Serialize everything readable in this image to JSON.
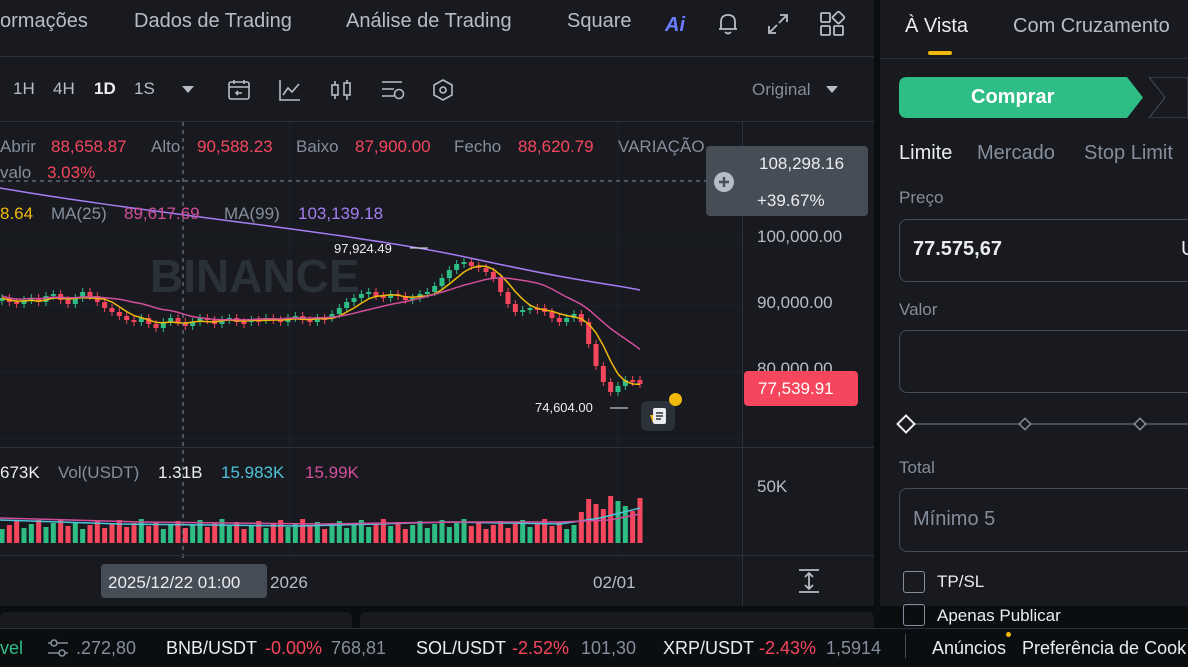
{
  "topnav": {
    "items": [
      "ormações",
      "Dados de Trading",
      "Análise de Trading",
      "Square"
    ],
    "ai_label": "Ai"
  },
  "toolbar": {
    "intervals": [
      "1H",
      "4H",
      "1D",
      "1S"
    ],
    "active_interval": "1D",
    "view_mode": "Original"
  },
  "ohlc": {
    "open_label": "Abrir",
    "open": "88,658.87",
    "high_label": "Alto",
    "high": "90,588.23",
    "low_label": "Baixo",
    "low": "87,900.00",
    "close_label": "Fecho",
    "close": "88,620.79",
    "change_label": "VARIAÇÃO",
    "range_label": "valo",
    "range": "3.03%"
  },
  "ma": {
    "ma7_value": "8.64",
    "ma25_label": "MA(25)",
    "ma25_value": "89,617.69",
    "ma99_label": "MA(99)",
    "ma99_value": "103,139.18"
  },
  "price_tooltip": {
    "price": "108,298.16",
    "change": "+39.67%"
  },
  "price_axis": [
    "100,000.00",
    "90,000.00",
    "80,000.00"
  ],
  "current_price": "77,539.91",
  "annotations": {
    "high": "97,924.49",
    "low": "74,604.00"
  },
  "volume": {
    "left_value": "673K",
    "label": "Vol(USDT)",
    "usdt": "1.31B",
    "ma5": "15.983K",
    "ma10": "15.99K",
    "axis": "50K"
  },
  "time_axis": {
    "crosshair_date": "2025/12/22 01:00",
    "year": "2026",
    "date_right": "02/01"
  },
  "order_panel": {
    "tabs": [
      "À Vista",
      "Com Cruzamento"
    ],
    "active_tab": "À Vista",
    "buy_label": "Comprar",
    "order_types": [
      "Limite",
      "Mercado",
      "Stop Limit"
    ],
    "price_label": "Preço",
    "price_value": "77.575,67",
    "price_unit": "U",
    "amount_label": "Valor",
    "total_label": "Total",
    "total_placeholder": "Mínimo 5",
    "tpsl_label": "TP/SL",
    "post_only_label": "Apenas Publicar"
  },
  "ticker": {
    "left_fragment": "vel",
    "pair0_price": ".272,80",
    "pairs": [
      {
        "symbol": "BNB/USDT",
        "change": "-0.00%",
        "price": "768,81"
      },
      {
        "symbol": "SOL/USDT",
        "change": "-2.52%",
        "price": "101,30"
      },
      {
        "symbol": "XRP/USDT",
        "change": "-2.43%",
        "price": "1,5914"
      }
    ],
    "announcements": "Anúncios",
    "cookies": "Preferência de Cook"
  },
  "colors": {
    "up": "#2ebd85",
    "down": "#f6465d",
    "accent": "#f0b90b",
    "buy": "#2ebd85"
  },
  "icons": [
    "bell-icon",
    "fullscreen-icon",
    "grid-icon",
    "chevron-down-icon",
    "replay-icon",
    "indicator-icon",
    "candle-icon",
    "layout-icon",
    "hexagon-icon",
    "plus-circle-icon",
    "note-icon",
    "fit-icon",
    "settings-sliders-icon"
  ]
}
